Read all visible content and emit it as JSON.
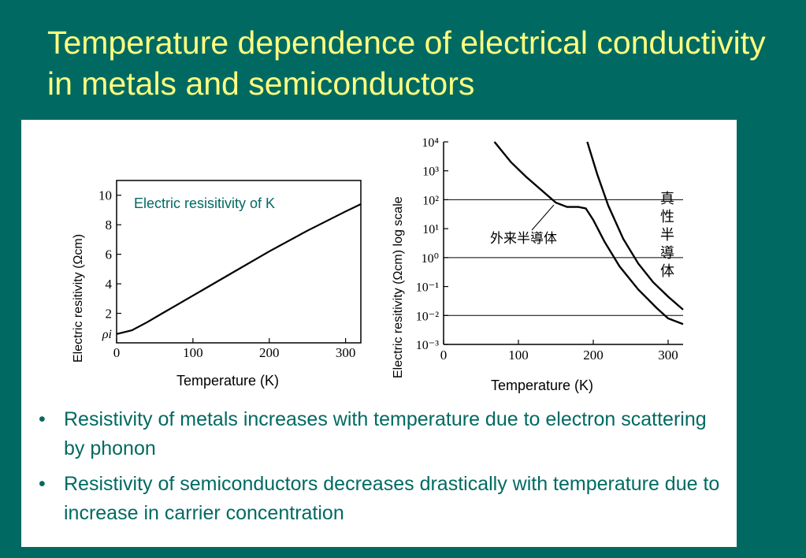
{
  "slide": {
    "title": "Temperature dependence of electrical conductivity in metals and semiconductors",
    "bullets": [
      "Resistivity of metals increases with temperature due to electron scattering by phonon",
      "Resistivity of semiconductors decreases drastically with temperature due to increase in carrier concentration"
    ],
    "bullet_symbol": "•"
  },
  "chart_data": [
    {
      "type": "line",
      "annotation": "Electric resisitivity of K",
      "xlabel": "Temperature (K)",
      "ylabel": "Electric resitivity (Ωcm)",
      "xlim": [
        0,
        320
      ],
      "ylim": [
        0,
        11
      ],
      "x_ticks": [
        0,
        100,
        200,
        300
      ],
      "y_ticks": [
        2,
        4,
        6,
        8,
        10
      ],
      "y_extra_tick_label": "ρi",
      "series": [
        {
          "x": [
            0,
            20,
            40,
            60,
            80,
            100,
            150,
            200,
            250,
            300,
            320
          ],
          "y": [
            0.6,
            0.85,
            1.4,
            2.0,
            2.6,
            3.2,
            4.7,
            6.2,
            7.6,
            8.9,
            9.4
          ]
        }
      ]
    },
    {
      "type": "line",
      "xlabel": "Temperature (K)",
      "ylabel": "Electric resitivity (Ωcm) log scale",
      "yscale": "log",
      "xlim": [
        0,
        320
      ],
      "ylim_exp": [
        -3,
        4
      ],
      "x_ticks": [
        0,
        100,
        200,
        300
      ],
      "y_tick_labels": [
        "10⁴",
        "10³",
        "10²",
        "10¹",
        "10⁰",
        "10⁻¹",
        "10⁻²",
        "10⁻³"
      ],
      "y_tick_exps": [
        4,
        3,
        2,
        1,
        0,
        -1,
        -2,
        -3
      ],
      "hlines_exp": [
        2,
        0,
        -2
      ],
      "labels": [
        "外来半導体",
        "真性半導体"
      ],
      "series": [
        {
          "name": "外来半導体",
          "x": [
            68,
            90,
            110,
            130,
            150,
            165,
            180,
            190,
            200,
            215,
            235,
            260,
            285,
            300,
            320
          ],
          "log10_y": [
            4.0,
            3.3,
            2.8,
            2.35,
            1.9,
            1.75,
            1.75,
            1.7,
            1.3,
            0.55,
            -0.3,
            -1.1,
            -1.75,
            -2.1,
            -2.3
          ]
        },
        {
          "name": "真性半導体",
          "x": [
            192,
            205,
            220,
            240,
            260,
            280,
            300,
            320
          ],
          "log10_y": [
            4.0,
            2.9,
            1.8,
            0.65,
            -0.2,
            -0.85,
            -1.35,
            -1.8
          ]
        }
      ]
    }
  ]
}
